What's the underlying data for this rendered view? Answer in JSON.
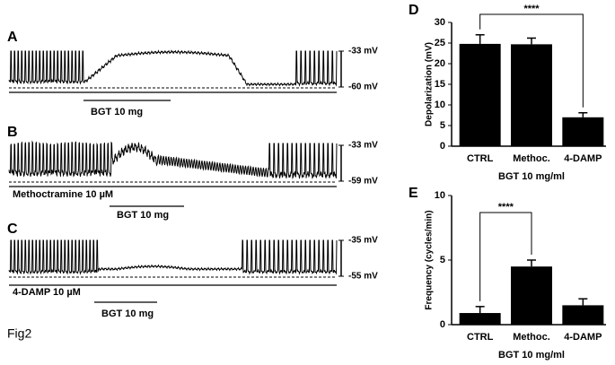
{
  "traces": [
    {
      "label": "A",
      "top": "-33 mV",
      "bottom": "-60 mV",
      "drug": null,
      "treatment": "BGT 10 mg"
    },
    {
      "label": "B",
      "top": "-33 mV",
      "bottom": "-59 mV",
      "drug": "Methoctramine 10 µM",
      "treatment": "BGT 10 mg"
    },
    {
      "label": "C",
      "top": "-35 mV",
      "bottom": "-55 mV",
      "drug": "4-DAMP 10 µM",
      "treatment": "BGT 10 mg"
    }
  ],
  "figure_label": "Fig2",
  "chart_data": [
    {
      "type": "bar",
      "panel": "D",
      "ylabel": "Depolarization (mV)",
      "xlabel": "BGT 10 mg/ml",
      "categories": [
        "CTRL",
        "Methoc.",
        "4-DAMP"
      ],
      "values": [
        24.8,
        24.7,
        7
      ],
      "errors": [
        2.2,
        1.5,
        1.1
      ],
      "color": "#000000",
      "ylim": [
        0,
        30
      ],
      "yticks": [
        0,
        5,
        10,
        15,
        20,
        25,
        30
      ],
      "significance": "****"
    },
    {
      "type": "bar",
      "panel": "E",
      "ylabel": "Frequency (cycles/min)",
      "xlabel": "BGT 10 mg/ml",
      "categories": [
        "CTRL",
        "Methoc.",
        "4-DAMP"
      ],
      "values": [
        0.9,
        4.5,
        1.5
      ],
      "errors": [
        0.5,
        0.5,
        0.5
      ],
      "color": "#000000",
      "ylim": [
        0,
        10
      ],
      "yticks": [
        0,
        5,
        10
      ],
      "significance": "****"
    }
  ]
}
